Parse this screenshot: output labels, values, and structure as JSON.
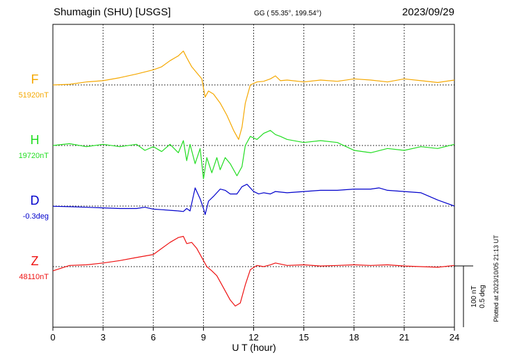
{
  "header": {
    "station": "Shumagin (SHU)  [USGS]",
    "coords": "GG ( 55.35°, 199.54°)",
    "date": "2023/09/29"
  },
  "footer": {
    "plotted": "Plotted at 2023/10/05 21:13 UT"
  },
  "scale_bar": {
    "nt_label": "100 nT",
    "deg_label": "0.5 deg"
  },
  "chart_data": {
    "type": "line",
    "title": "Shumagin (SHU)  [USGS]",
    "xlabel": "U T (hour)",
    "xlim": [
      0,
      24
    ],
    "xticks": [
      "0",
      "3",
      "6",
      "9",
      "12",
      "15",
      "18",
      "21",
      "24"
    ],
    "grid": true,
    "scale": {
      "nT_per_div": 100,
      "deg_per_div": 0.5
    },
    "series": [
      {
        "name": "F",
        "baseline_label": "51920nT",
        "color": "#f5a800",
        "unit": "nT",
        "x": [
          0,
          1,
          2,
          3,
          4,
          5,
          6,
          6.5,
          7,
          7.5,
          7.8,
          8.0,
          8.3,
          8.6,
          8.9,
          9.1,
          9.3,
          9.6,
          10.0,
          10.4,
          10.8,
          11.1,
          11.3,
          11.5,
          11.8,
          12.2,
          12.6,
          13.0,
          13.3,
          13.6,
          14,
          15,
          16,
          17,
          18,
          19,
          20,
          21,
          22,
          23,
          24
        ],
        "y": [
          51920,
          51921,
          51925,
          51927,
          51932,
          51938,
          51945,
          51950,
          51960,
          51968,
          51976,
          51965,
          51950,
          51940,
          51930,
          51900,
          51910,
          51905,
          51890,
          51870,
          51845,
          51830,
          51850,
          51890,
          51920,
          51925,
          51926,
          51930,
          51935,
          51927,
          51928,
          51925,
          51928,
          51926,
          51930,
          51928,
          51925,
          51930,
          51927,
          51924,
          51928
        ]
      },
      {
        "name": "H",
        "baseline_label": "19720nT",
        "color": "#22dd22",
        "unit": "nT",
        "x": [
          0,
          1,
          2,
          3,
          4,
          5,
          5.5,
          6,
          6.5,
          7,
          7.5,
          7.8,
          8.0,
          8.2,
          8.5,
          8.8,
          9.0,
          9.2,
          9.5,
          9.8,
          10.0,
          10.3,
          10.6,
          11.0,
          11.3,
          11.5,
          11.8,
          12.2,
          12.6,
          13.0,
          13.3,
          13.6,
          14,
          15,
          16,
          17,
          18,
          19,
          20,
          21,
          22,
          23,
          24
        ],
        "y": [
          19720,
          19723,
          19718,
          19722,
          19718,
          19722,
          19712,
          19718,
          19710,
          19722,
          19708,
          19728,
          19695,
          19722,
          19690,
          19715,
          19665,
          19700,
          19675,
          19700,
          19680,
          19700,
          19690,
          19670,
          19685,
          19720,
          19735,
          19730,
          19740,
          19745,
          19738,
          19735,
          19730,
          19725,
          19728,
          19725,
          19712,
          19708,
          19715,
          19712,
          19718,
          19715,
          19722
        ]
      },
      {
        "name": "D",
        "baseline_label": "-0.3deg",
        "color": "#0000cc",
        "unit": "deg",
        "x": [
          0,
          1,
          2,
          3,
          4,
          5,
          5.5,
          6,
          6.5,
          7,
          7.5,
          7.8,
          8.0,
          8.2,
          8.5,
          8.8,
          9.0,
          9.1,
          9.3,
          9.6,
          10.0,
          10.3,
          10.6,
          11.0,
          11.3,
          11.6,
          12.0,
          12.3,
          12.6,
          13.0,
          13.3,
          14,
          15,
          16,
          17,
          18,
          19,
          19.5,
          20,
          21,
          22,
          23,
          24
        ],
        "y": [
          -0.302,
          -0.305,
          -0.31,
          -0.315,
          -0.32,
          -0.32,
          -0.31,
          -0.325,
          -0.33,
          -0.335,
          -0.34,
          -0.345,
          -0.32,
          -0.34,
          -0.15,
          -0.24,
          -0.32,
          -0.37,
          -0.26,
          -0.22,
          -0.16,
          -0.17,
          -0.2,
          -0.2,
          -0.14,
          -0.12,
          -0.18,
          -0.2,
          -0.19,
          -0.2,
          -0.18,
          -0.19,
          -0.18,
          -0.17,
          -0.17,
          -0.16,
          -0.16,
          -0.15,
          -0.17,
          -0.18,
          -0.19,
          -0.25,
          -0.3
        ]
      },
      {
        "name": "Z",
        "baseline_label": "48110nT",
        "color": "#ee1111",
        "unit": "nT",
        "x": [
          0,
          1,
          2,
          3,
          4,
          5,
          6,
          6.5,
          7,
          7.5,
          7.8,
          8.0,
          8.3,
          8.6,
          8.9,
          9.2,
          9.5,
          9.8,
          10.2,
          10.6,
          10.9,
          11.2,
          11.5,
          11.8,
          12.2,
          12.6,
          13.0,
          13.3,
          14,
          15,
          16,
          17,
          18,
          19,
          20,
          21,
          22,
          23,
          24
        ],
        "y": [
          48103,
          48112,
          48113,
          48116,
          48120,
          48125,
          48130,
          48140,
          48150,
          48158,
          48160,
          48148,
          48150,
          48140,
          48125,
          48110,
          48103,
          48095,
          48075,
          48055,
          48045,
          48050,
          48080,
          48105,
          48112,
          48110,
          48113,
          48116,
          48112,
          48113,
          48111,
          48112,
          48113,
          48112,
          48113,
          48111,
          48110,
          48109,
          48112
        ]
      }
    ]
  }
}
